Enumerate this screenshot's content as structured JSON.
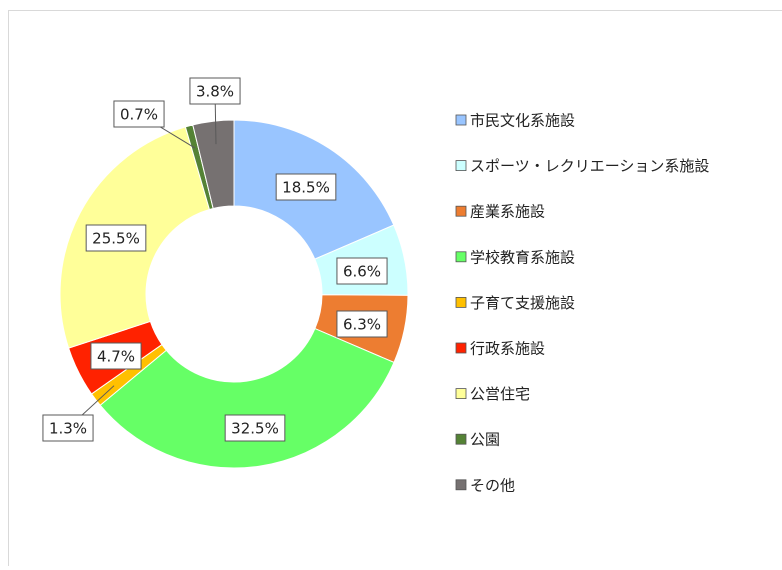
{
  "chart_data": {
    "type": "donut",
    "categories": [
      "市民文化系施設",
      "スポーツ・レクリエーション系施設",
      "産業系施設",
      "学校教育系施設",
      "子育て支援施設",
      "行政系施設",
      "公営住宅",
      "公園",
      "その他"
    ],
    "values": [
      18.5,
      6.6,
      6.3,
      32.5,
      1.3,
      4.7,
      25.5,
      0.7,
      3.8
    ],
    "value_labels": [
      "18.5%",
      "6.6%",
      "6.3%",
      "32.5%",
      "1.3%",
      "4.7%",
      "25.5%",
      "0.7%",
      "3.8%"
    ],
    "colors": [
      "#99c5ff",
      "#ccffff",
      "#ed7d31",
      "#66ff66",
      "#ffc000",
      "#ff2200",
      "#ffff99",
      "#548235",
      "#767171"
    ],
    "legend": "right"
  }
}
